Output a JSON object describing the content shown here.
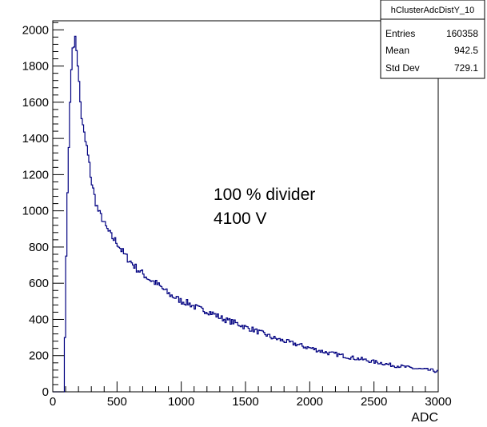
{
  "chart_data": {
    "type": "histogram",
    "xlabel": "ADC",
    "ylabel": "",
    "xlim": [
      0,
      3000
    ],
    "ylim": [
      0,
      2050
    ],
    "xticks": [
      0,
      500,
      1000,
      1500,
      2000,
      2500,
      3000
    ],
    "yticks": [
      0,
      200,
      400,
      600,
      800,
      1000,
      1200,
      1400,
      1600,
      1800,
      2000
    ],
    "grid": false,
    "legend": "none",
    "line_color": "#000080",
    "annotations": [
      "100 % divider",
      "4100 V"
    ],
    "stats_box": {
      "title": "hClusterAdcDistY_10",
      "rows": [
        {
          "label": "Entries",
          "value": "160358"
        },
        {
          "label": "Mean",
          "value": "942.5"
        },
        {
          "label": "Std Dev",
          "value": "729.1"
        }
      ]
    },
    "bin_width": 10,
    "bins": {
      "x_low_edges": [
        80,
        90,
        100,
        110,
        120,
        130,
        140,
        150,
        160,
        170,
        180,
        190,
        200,
        210,
        220,
        230,
        240,
        250,
        260,
        270,
        280,
        290,
        300,
        320,
        340,
        360,
        380,
        400,
        450,
        500,
        550,
        600,
        650,
        700,
        750,
        800,
        850,
        900,
        950,
        1000,
        1050,
        1100,
        1150,
        1200,
        1250,
        1300,
        1350,
        1400,
        1450,
        1500,
        1550,
        1600,
        1650,
        1700,
        1750,
        1800,
        1850,
        1900,
        1950,
        2000,
        2050,
        2100,
        2150,
        2200,
        2250,
        2300,
        2350,
        2400,
        2450,
        2500,
        2550,
        2600,
        2650,
        2700,
        2750,
        2800,
        2850,
        2900,
        2950,
        2990
      ],
      "values": [
        0,
        300,
        750,
        1100,
        1350,
        1600,
        1780,
        1900,
        1940,
        1935,
        1900,
        1820,
        1700,
        1600,
        1520,
        1460,
        1420,
        1380,
        1350,
        1300,
        1250,
        1200,
        1150,
        1080,
        1020,
        980,
        960,
        920,
        860,
        820,
        760,
        720,
        680,
        650,
        620,
        600,
        570,
        540,
        520,
        500,
        490,
        470,
        455,
        445,
        430,
        410,
        395,
        385,
        372,
        355,
        345,
        330,
        318,
        300,
        290,
        280,
        270,
        262,
        250,
        242,
        232,
        222,
        213,
        208,
        200,
        192,
        185,
        180,
        172,
        165,
        160,
        152,
        145,
        142,
        136,
        130,
        126,
        122,
        118,
        112
      ]
    }
  }
}
